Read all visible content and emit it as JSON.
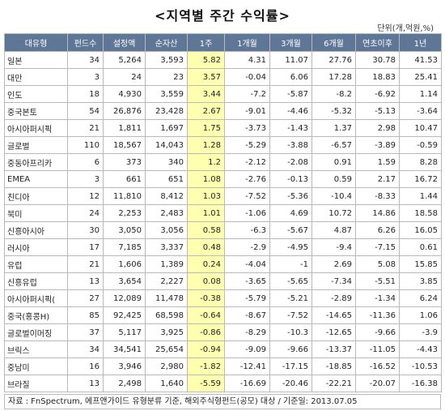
{
  "title": "<지역별 주간 수익률>",
  "unit": "단위(개,억원,%)",
  "columns": [
    "대유형",
    "펀드수",
    "설정액",
    "순자산",
    "1주",
    "1개월",
    "3개월",
    "6개월",
    "연초이후",
    "1년"
  ],
  "rows": [
    [
      "일본",
      "34",
      "5,264",
      "3,593",
      "5.82",
      "4.31",
      "11.07",
      "27.76",
      "30.78",
      "41.53"
    ],
    [
      "대만",
      "3",
      "24",
      "23",
      "3.57",
      "-0.04",
      "6.06",
      "17.28",
      "18.83",
      "25.41"
    ],
    [
      "인도",
      "18",
      "4,930",
      "3,559",
      "3.44",
      "-7.2",
      "-5.87",
      "-8.2",
      "-6.92",
      "1.14"
    ],
    [
      "중국본토",
      "54",
      "26,876",
      "23,428",
      "2.67",
      "-9.01",
      "-4.46",
      "-5.32",
      "-5.13",
      "-3.64"
    ],
    [
      "아시아퍼시픽",
      "21",
      "1,811",
      "1,697",
      "1.75",
      "-3.73",
      "-1.43",
      "1.37",
      "2.98",
      "10.47"
    ],
    [
      "글로벌",
      "110",
      "18,567",
      "14,043",
      "1.28",
      "-5.29",
      "-3.88",
      "-6.57",
      "-3.89",
      "-0.59"
    ],
    [
      "중동아프리카",
      "6",
      "373",
      "340",
      "1.2",
      "-2.12",
      "-2.08",
      "0.91",
      "1.59",
      "8.28"
    ],
    [
      "EMEA",
      "3",
      "661",
      "651",
      "1.08",
      "-2.76",
      "-0.13",
      "0.59",
      "2.17",
      "16.72"
    ],
    [
      "친디아",
      "12",
      "11,810",
      "8,412",
      "1.03",
      "-7.52",
      "-5.36",
      "-10.4",
      "-8.33",
      "1.44"
    ],
    [
      "북미",
      "24",
      "2,253",
      "2,483",
      "1.01",
      "-1.06",
      "4.69",
      "10.72",
      "14.86",
      "18.58"
    ],
    [
      "신흥아시아",
      "30",
      "3,050",
      "3,056",
      "0.58",
      "-6.3",
      "-5.67",
      "4.87",
      "6.26",
      "16.05"
    ],
    [
      "러시아",
      "17",
      "7,185",
      "3,337",
      "0.48",
      "-2.9",
      "-4.95",
      "-9.4",
      "-7.15",
      "0.61"
    ],
    [
      "유럽",
      "21",
      "1,606",
      "1,389",
      "0.24",
      "-4.04",
      "-1",
      "2.69",
      "5.08",
      "15.85"
    ],
    [
      "신흥유럽",
      "13",
      "3,654",
      "2,227",
      "0.08",
      "-3.65",
      "-5.65",
      "-7.34",
      "-5.51",
      "3.85"
    ],
    [
      "아시아퍼시픽(",
      "27",
      "12,089",
      "11,478",
      "-0.38",
      "-5.79",
      "-5.21",
      "-2.89",
      "-1.34",
      "6.24"
    ],
    [
      "중국(홍콩H)",
      "85",
      "92,425",
      "68,598",
      "-0.64",
      "-8.67",
      "-7.52",
      "-14.65",
      "-11.36",
      "1.06"
    ],
    [
      "글로벌이머징",
      "37",
      "5,117",
      "3,925",
      "-0.86",
      "-8.29",
      "-10.3",
      "-12.65",
      "-9.66",
      "-3.9"
    ],
    [
      "브릭스",
      "34",
      "34,541",
      "25,654",
      "-0.94",
      "-9.09",
      "-9.66",
      "-13.37",
      "-11.05",
      "-4.43"
    ],
    [
      "중남미",
      "16",
      "3,946",
      "2,980",
      "-1.82",
      "-12.41",
      "-17.15",
      "-18.85",
      "-16.52",
      "-10.53"
    ],
    [
      "브라질",
      "13",
      "2,498",
      "1,640",
      "-5.59",
      "-16.69",
      "-20.46",
      "-22.21",
      "-20.07",
      "-16.38"
    ]
  ],
  "highlight_column": 4,
  "footer": "자료 : FnSpectrum, 에프앤가이드 유형분류 기준, 해외주식형펀드(공모) 대상 / 기준일: 2013.07.05",
  "colors": {
    "header_bg": "#5f7797",
    "highlight_bg": "#ffffb0",
    "border": "#b9b9b9"
  }
}
